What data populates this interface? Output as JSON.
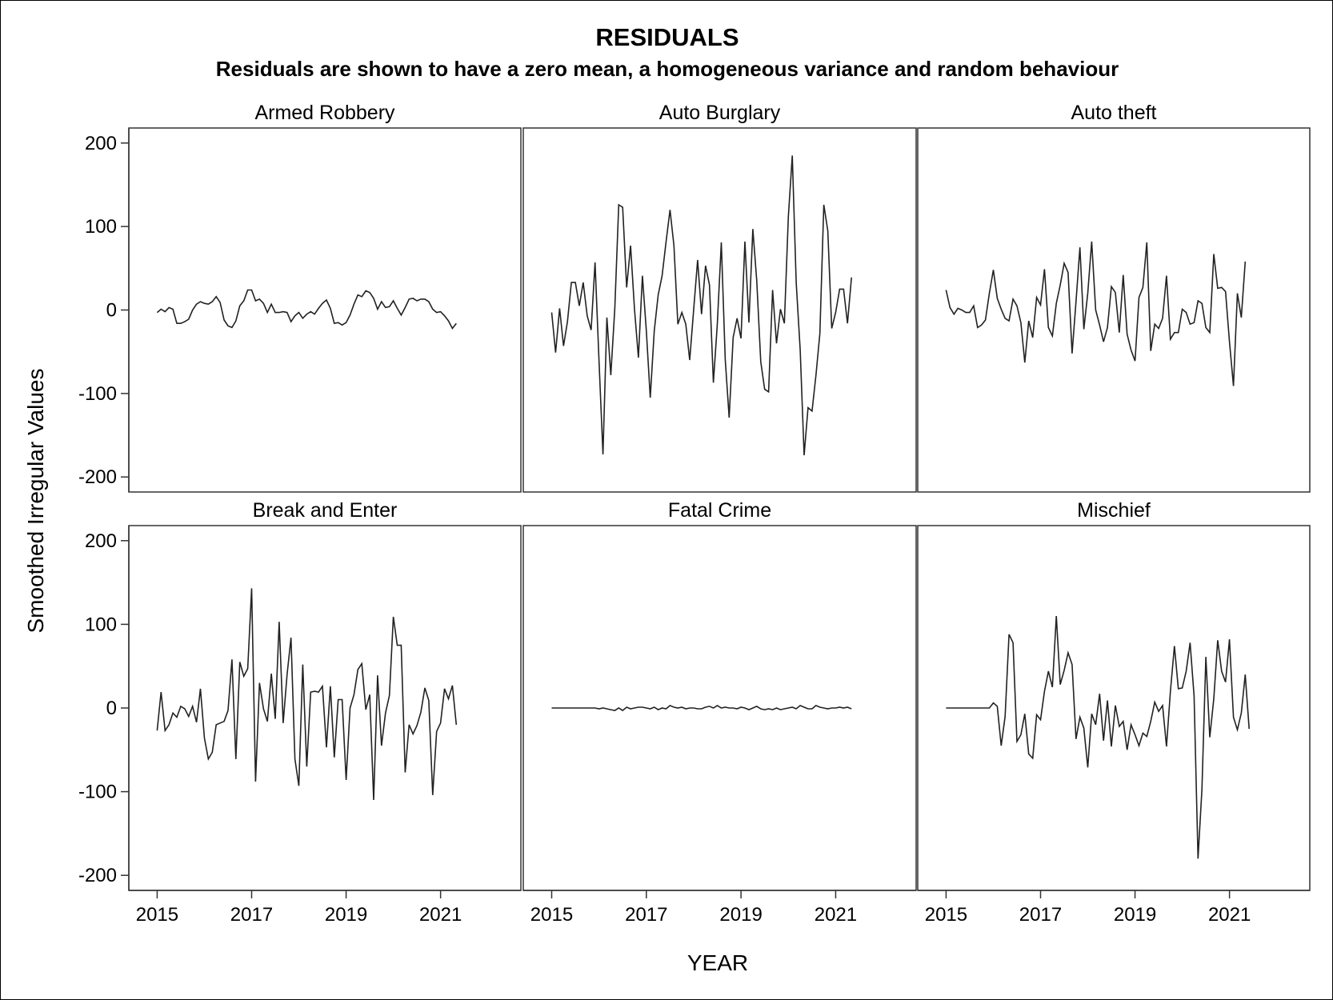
{
  "chart_data": {
    "type": "line",
    "title": "RESIDUALS",
    "subtitle": "Residuals are shown to have a zero mean, a homogeneous variance and random behaviour",
    "xlabel": "YEAR",
    "ylabel": "Smoothed Irregular Values",
    "xlim": [
      2014.4,
      2022.7
    ],
    "ylim": [
      -218,
      218
    ],
    "x_ticks": [
      2015,
      2017,
      2019,
      2021
    ],
    "y_ticks": [
      -200,
      -100,
      0,
      100,
      200
    ],
    "grid": false,
    "layout": "2 rows x 3 columns",
    "x_start": 2015.0,
    "x_step": 0.083333,
    "series": [
      {
        "name": "Armed Robbery",
        "values": [
          -3,
          1,
          -2,
          3,
          1,
          -16,
          -16,
          -14,
          -11,
          0,
          7,
          10,
          8,
          7,
          10,
          16,
          9,
          -12,
          -19,
          -21,
          -13,
          5,
          11,
          24,
          24,
          11,
          13,
          8,
          -3,
          7,
          -3,
          -3,
          -2,
          -3,
          -14,
          -7,
          -3,
          -10,
          -5,
          -2,
          -5,
          2,
          8,
          12,
          2,
          -16,
          -15,
          -18,
          -15,
          -6,
          7,
          18,
          16,
          23,
          21,
          14,
          1,
          10,
          3,
          4,
          11,
          2,
          -6,
          3,
          13,
          14,
          11,
          13,
          13,
          10,
          1,
          -3,
          -2,
          -7,
          -13,
          -22,
          -16
        ]
      },
      {
        "name": "Auto Burglary",
        "values": [
          -3,
          -51,
          2,
          -43,
          -14,
          33,
          33,
          5,
          33,
          -7,
          -24,
          57,
          -62,
          -173,
          -9,
          -78,
          2,
          126,
          123,
          27,
          77,
          1,
          -57,
          41,
          -25,
          -105,
          -25,
          18,
          41,
          82,
          120,
          77,
          -17,
          -3,
          -17,
          -60,
          1,
          60,
          -5,
          53,
          30,
          -87,
          -17,
          81,
          -59,
          -129,
          -33,
          -10,
          -34,
          82,
          -15,
          97,
          35,
          -62,
          -95,
          -98,
          24,
          -40,
          1,
          -16,
          112,
          185,
          33,
          -48,
          -174,
          -117,
          -121,
          -78,
          -28,
          126,
          95,
          -22,
          -3,
          25,
          25,
          -16,
          39
        ]
      },
      {
        "name": "Auto theft",
        "values": [
          24,
          3,
          -5,
          2,
          0,
          -3,
          -3,
          5,
          -21,
          -18,
          -12,
          20,
          48,
          14,
          1,
          -10,
          -13,
          13,
          5,
          -15,
          -63,
          -13,
          -33,
          15,
          6,
          49,
          -21,
          -31,
          8,
          30,
          56,
          45,
          -52,
          10,
          75,
          -23,
          20,
          82,
          0,
          -18,
          -38,
          -21,
          28,
          21,
          -27,
          42,
          -29,
          -48,
          -61,
          15,
          27,
          81,
          -49,
          -17,
          -22,
          -10,
          41,
          -35,
          -27,
          -27,
          1,
          -3,
          -17,
          -15,
          11,
          8,
          -21,
          -27,
          67,
          26,
          27,
          22,
          -38,
          -91,
          20,
          -9,
          58
        ]
      },
      {
        "name": "Break and Enter",
        "values": [
          -27,
          19,
          -27,
          -20,
          -6,
          -11,
          2,
          -1,
          -10,
          2,
          -17,
          23,
          -36,
          -61,
          -53,
          -20,
          -18,
          -16,
          -3,
          58,
          -61,
          55,
          38,
          47,
          143,
          -88,
          30,
          -1,
          -16,
          41,
          -13,
          103,
          -18,
          40,
          84,
          -61,
          -93,
          52,
          -70,
          19,
          20,
          19,
          26,
          -47,
          26,
          -59,
          10,
          10,
          -86,
          0,
          16,
          46,
          53,
          -2,
          16,
          -110,
          39,
          -45,
          -6,
          15,
          109,
          75,
          75,
          -77,
          -20,
          -31,
          -21,
          -5,
          24,
          9,
          -104,
          -28,
          -18,
          23,
          11,
          27,
          -20
        ]
      },
      {
        "name": "Fatal Crime",
        "values": [
          0,
          0,
          0,
          0,
          0,
          0,
          0,
          0,
          0,
          0,
          0,
          0,
          -1,
          0,
          -1,
          -2,
          -3,
          0,
          -3,
          1,
          -1,
          0,
          1,
          1,
          0,
          -1,
          1,
          -2,
          0,
          -1,
          3,
          1,
          0,
          1,
          -1,
          0,
          0,
          -1,
          -1,
          1,
          2,
          0,
          3,
          0,
          1,
          0,
          0,
          -1,
          1,
          0,
          -2,
          0,
          2,
          -1,
          -2,
          -1,
          -2,
          0,
          -2,
          -1,
          0,
          1,
          -1,
          3,
          1,
          -1,
          -1,
          3,
          1,
          0,
          -1,
          0,
          0,
          1,
          0,
          1,
          -1
        ]
      },
      {
        "name": "Mischief",
        "values": [
          0,
          0,
          0,
          0,
          0,
          0,
          0,
          0,
          0,
          0,
          0,
          0,
          6,
          2,
          -45,
          -10,
          88,
          78,
          -40,
          -32,
          -7,
          -55,
          -60,
          -8,
          -14,
          20,
          44,
          25,
          110,
          28,
          45,
          66,
          52,
          -37,
          -11,
          -24,
          -71,
          -7,
          -20,
          17,
          -39,
          9,
          -46,
          3,
          -22,
          -16,
          -50,
          -20,
          -32,
          -45,
          -30,
          -34,
          -16,
          7,
          -4,
          3,
          -46,
          20,
          74,
          23,
          24,
          44,
          78,
          14,
          -180,
          -97,
          61,
          -35,
          11,
          81,
          44,
          31,
          82,
          -11,
          -26,
          -6,
          40,
          -25
        ]
      }
    ]
  }
}
